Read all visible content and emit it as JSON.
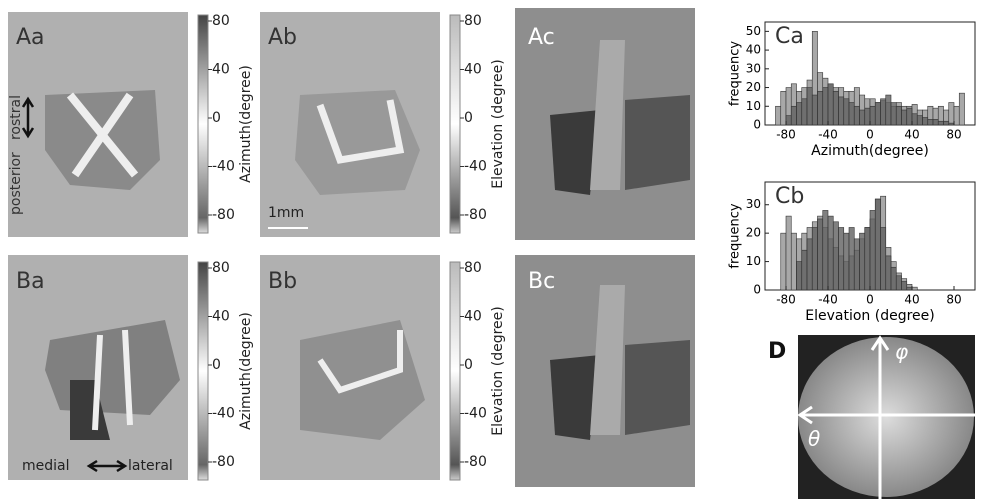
{
  "panels": {
    "Aa": "Aa",
    "Ab": "Ab",
    "Ac": "Ac",
    "Ba": "Ba",
    "Bb": "Bb",
    "Bc": "Bc",
    "D": "D"
  },
  "colorbars": [
    {
      "label": "Azimuth(degree)",
      "ticks": [
        80,
        40,
        0,
        -40,
        -80
      ]
    },
    {
      "label": "Elevation (degree)",
      "ticks": [
        80,
        40,
        0,
        -40,
        -80
      ]
    },
    {
      "label": "Azimuth(degree)",
      "ticks": [
        80,
        40,
        0,
        -40,
        -80
      ]
    },
    {
      "label": "Elevation (degree)",
      "ticks": [
        80,
        40,
        0,
        -40,
        -80
      ]
    }
  ],
  "annotations": {
    "posterior": "posterior",
    "rostral": "rostral",
    "scale": "1mm",
    "medial": "medial",
    "lateral": "lateral",
    "phi": "φ",
    "theta": "θ"
  },
  "chart_data": [
    {
      "type": "histogram",
      "title": "Ca",
      "x_label": "Azimuth(degree)",
      "y_label": "frequency",
      "bins": [
        -90,
        -85,
        -80,
        -75,
        -70,
        -65,
        -60,
        -55,
        -50,
        -45,
        -40,
        -35,
        -30,
        -25,
        -20,
        -15,
        -10,
        -5,
        0,
        5,
        10,
        15,
        20,
        25,
        30,
        35,
        40,
        45,
        50,
        55,
        60,
        65,
        70,
        75,
        80,
        85,
        90
      ],
      "series": [
        {
          "color": "#a8a8a8",
          "values": [
            10,
            18,
            20,
            22,
            18,
            20,
            24,
            50,
            28,
            25,
            22,
            20,
            20,
            18,
            18,
            20,
            16,
            14,
            14,
            12,
            13,
            12,
            10,
            12,
            10,
            10,
            11,
            8,
            8,
            10,
            9,
            10,
            8,
            12,
            10,
            17
          ]
        },
        {
          "color": "#606060",
          "values": [
            0,
            0,
            5,
            10,
            12,
            14,
            20,
            16,
            18,
            20,
            22,
            18,
            15,
            14,
            12,
            10,
            8,
            9,
            10,
            12,
            14,
            16,
            12,
            10,
            8,
            9,
            6,
            5,
            4,
            3,
            3,
            2,
            2,
            1,
            0,
            0
          ]
        }
      ],
      "xlim": [
        -100,
        100
      ],
      "xticks": [
        -80,
        -40,
        0,
        40,
        80
      ],
      "ylim": [
        0,
        55
      ],
      "yticks": [
        0,
        10,
        20,
        30,
        40,
        50
      ]
    },
    {
      "type": "histogram",
      "title": "Cb",
      "x_label": "Elevation (degree)",
      "y_label": "frequency",
      "bins": [
        -90,
        -85,
        -80,
        -75,
        -70,
        -65,
        -60,
        -55,
        -50,
        -45,
        -40,
        -35,
        -30,
        -25,
        -20,
        -15,
        -10,
        -5,
        0,
        5,
        10,
        15,
        20,
        25,
        30,
        35,
        40,
        45,
        50,
        55,
        60
      ],
      "series": [
        {
          "color": "#a8a8a8",
          "values": [
            0,
            20,
            26,
            20,
            18,
            20,
            22,
            24,
            26,
            22,
            18,
            15,
            12,
            10,
            12,
            14,
            18,
            22,
            25,
            32,
            33,
            15,
            10,
            6,
            4,
            2,
            1,
            0,
            0,
            0
          ]
        },
        {
          "color": "#606060",
          "values": [
            0,
            0,
            0,
            0,
            10,
            14,
            18,
            22,
            25,
            28,
            26,
            24,
            22,
            20,
            22,
            18,
            20,
            22,
            28,
            32,
            22,
            12,
            8,
            5,
            3,
            1,
            0,
            0,
            0,
            0
          ]
        }
      ],
      "xlim": [
        -100,
        100
      ],
      "xticks": [
        -80,
        -40,
        0,
        40,
        80
      ],
      "ylim": [
        0,
        38
      ],
      "yticks": [
        0,
        10,
        20,
        30
      ]
    }
  ]
}
